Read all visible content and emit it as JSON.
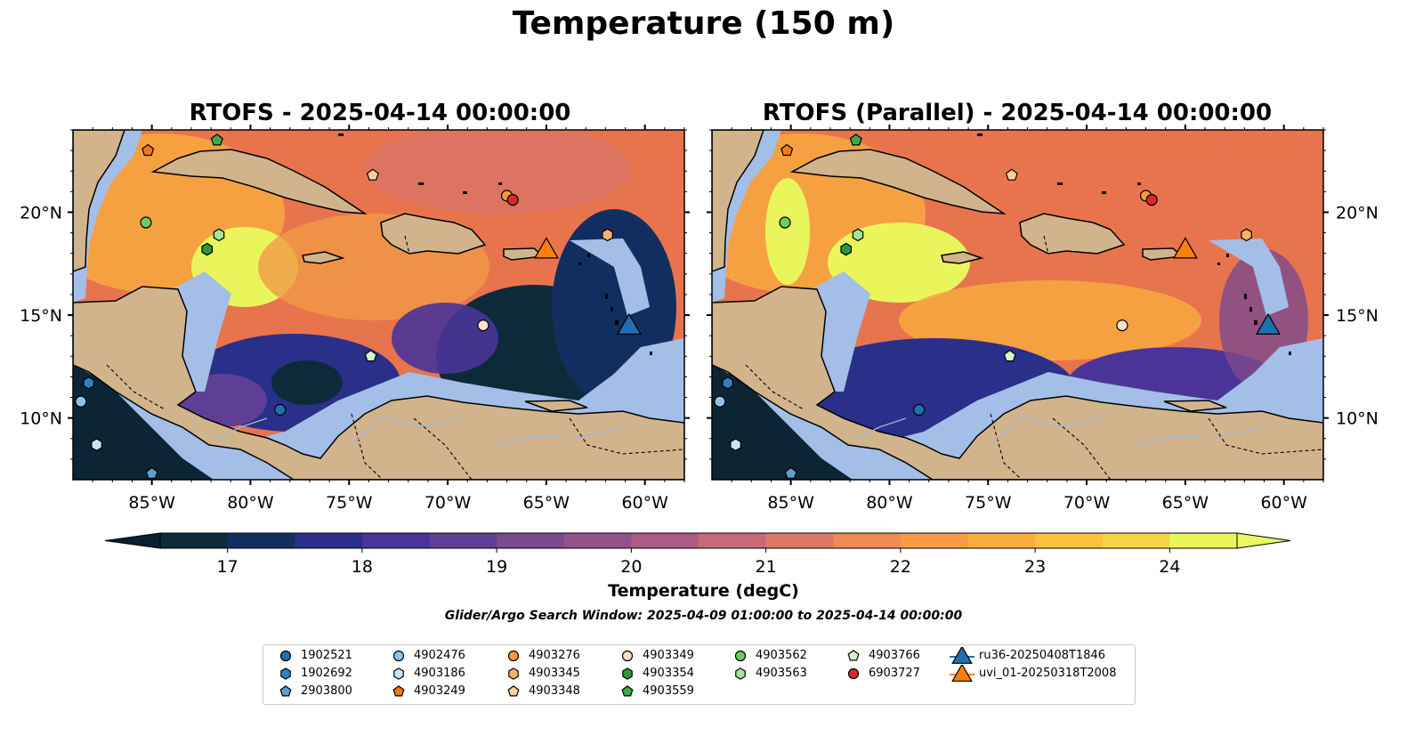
{
  "figure": {
    "title": "Temperature (150 m)",
    "search_window": "Glider/Argo Search Window: 2025-04-09 01:00:00 to 2025-04-14 00:00:00"
  },
  "panels": [
    {
      "title": "RTOFS - 2025-04-14 00:00:00"
    },
    {
      "title": "RTOFS (Parallel) - 2025-04-14 00:00:00"
    }
  ],
  "map": {
    "lon_range": [
      -89,
      -58
    ],
    "lat_range": [
      7,
      24
    ],
    "lon_ticks": [
      "85°W",
      "80°W",
      "75°W",
      "70°W",
      "65°W",
      "60°W"
    ],
    "lat_ticks": [
      "20°N",
      "15°N",
      "10°N"
    ],
    "colors": {
      "land": "#d2b48c",
      "shelf": "#a3bfe8",
      "deep": "#0b2535"
    }
  },
  "colorbar": {
    "label": "Temperature (degC)",
    "min": 16.5,
    "max": 24.5,
    "ticks": [
      "17",
      "18",
      "19",
      "20",
      "21",
      "22",
      "23",
      "24"
    ],
    "colors": [
      "#0d2a3b",
      "#122e60",
      "#2a2f8a",
      "#4a3498",
      "#5f3f95",
      "#7a4a8f",
      "#94528a",
      "#ad5c84",
      "#c66a78",
      "#dd7a65",
      "#ee8a52",
      "#f79a45",
      "#fbac3e",
      "#fcc040",
      "#f5d34a",
      "#eaf55c"
    ],
    "extend_low": "#0a1f2e",
    "extend_high": "#e8fa60"
  },
  "legend": {
    "items": [
      {
        "label": "1902521",
        "marker": "circle",
        "color": "#1f6fb4"
      },
      {
        "label": "1902692",
        "marker": "hexagon",
        "color": "#2f7fc1"
      },
      {
        "label": "2903800",
        "marker": "pentagon",
        "color": "#5b9fd2"
      },
      {
        "label": "4902476",
        "marker": "circle",
        "color": "#8ec2ea"
      },
      {
        "label": "4903186",
        "marker": "hexagon",
        "color": "#c7e3f7"
      },
      {
        "label": "4903249",
        "marker": "pentagon",
        "color": "#f27a12"
      },
      {
        "label": "4903276",
        "marker": "circle",
        "color": "#f59a3c"
      },
      {
        "label": "4903345",
        "marker": "hexagon",
        "color": "#f8b36a"
      },
      {
        "label": "4903348",
        "marker": "pentagon",
        "color": "#fbcf9d"
      },
      {
        "label": "4903349",
        "marker": "circle",
        "color": "#fde0c6"
      },
      {
        "label": "4903354",
        "marker": "hexagon",
        "color": "#2a9a35"
      },
      {
        "label": "4903559",
        "marker": "pentagon",
        "color": "#3daa45"
      },
      {
        "label": "4903562",
        "marker": "circle",
        "color": "#6ccd5e"
      },
      {
        "label": "4903563",
        "marker": "hexagon",
        "color": "#a5e399"
      },
      {
        "label": "4903766",
        "marker": "pentagon",
        "color": "#d6f4cc"
      },
      {
        "label": "6903727",
        "marker": "circle",
        "color": "#d62b28"
      },
      {
        "label": "ru36-20250408T1846",
        "marker": "triangle",
        "color": "#1f6fb4"
      },
      {
        "label": "uvi_01-20250318T2008",
        "marker": "triangle",
        "color": "#ff7f0e"
      }
    ]
  },
  "observations": [
    {
      "id": "4903249",
      "lon": -85.2,
      "lat": 23.0
    },
    {
      "id": "4903559",
      "lon": -81.7,
      "lat": 23.5
    },
    {
      "id": "4903348",
      "lon": -73.8,
      "lat": 21.8
    },
    {
      "id": "4903276",
      "lon": -67.0,
      "lat": 20.8
    },
    {
      "id": "6903727",
      "lon": -66.7,
      "lat": 20.6
    },
    {
      "id": "4903562",
      "lon": -85.3,
      "lat": 19.5
    },
    {
      "id": "4903563",
      "lon": -81.6,
      "lat": 18.9
    },
    {
      "id": "4903354",
      "lon": -82.2,
      "lat": 18.2
    },
    {
      "id": "4903345",
      "lon": -61.9,
      "lat": 18.9
    },
    {
      "id": "4903349",
      "lon": -68.2,
      "lat": 14.5
    },
    {
      "id": "4903766",
      "lon": -73.9,
      "lat": 13.0
    },
    {
      "id": "1902521",
      "lon": -78.5,
      "lat": 10.4
    },
    {
      "id": "1902692",
      "lon": -88.2,
      "lat": 11.7
    },
    {
      "id": "4902476",
      "lon": -88.6,
      "lat": 10.8
    },
    {
      "id": "4903186",
      "lon": -87.8,
      "lat": 8.7
    },
    {
      "id": "2903800",
      "lon": -85.0,
      "lat": 7.3
    },
    {
      "id": "ru36-20250408T1846",
      "lon": -60.8,
      "lat": 14.4
    },
    {
      "id": "uvi_01-20250318T2008",
      "lon": -65.0,
      "lat": 18.1
    }
  ]
}
